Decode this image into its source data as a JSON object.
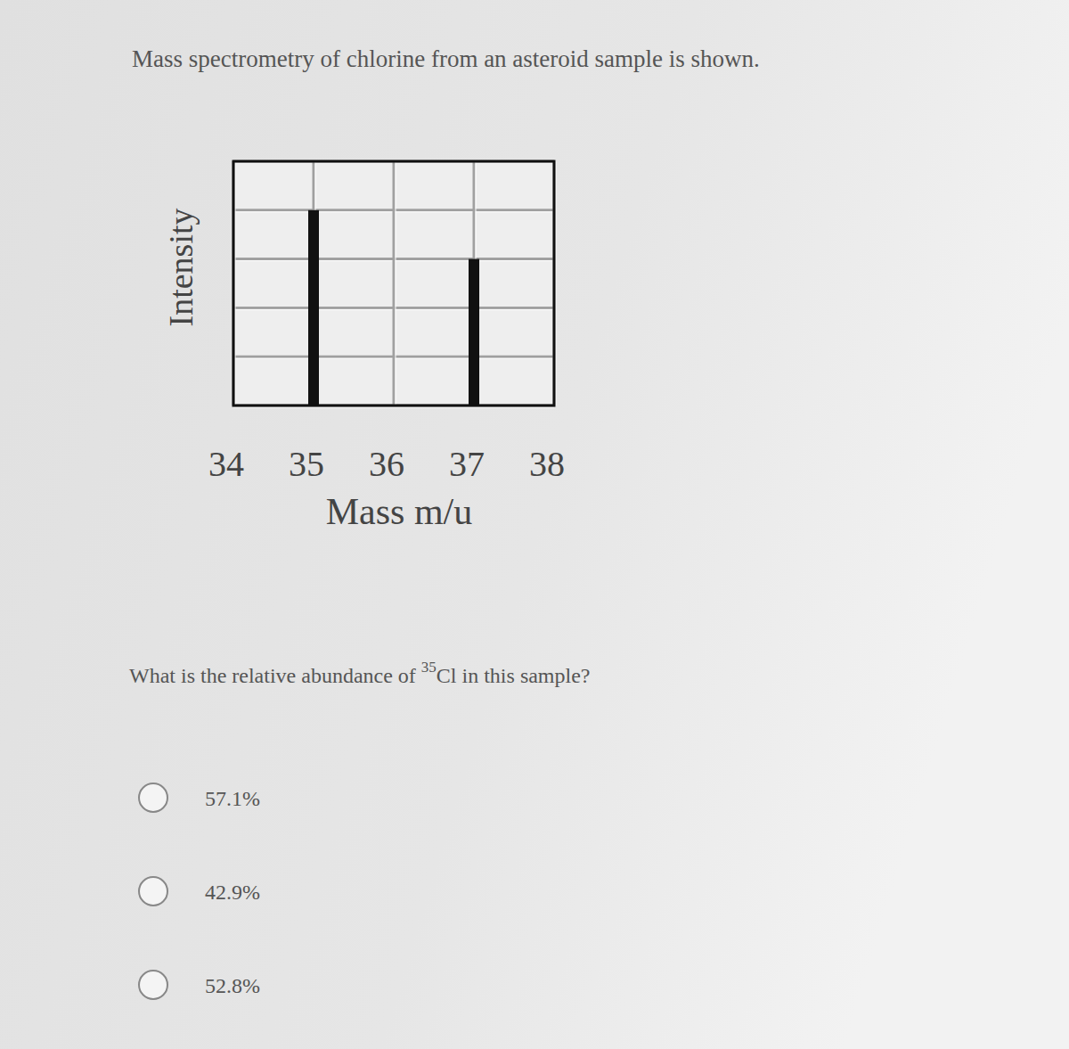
{
  "header": {
    "title": "Mass spectrometry of chlorine from an asteroid sample is shown."
  },
  "chart_data": {
    "type": "bar",
    "x": [
      35,
      37
    ],
    "values": [
      4,
      3
    ],
    "color": "#111111",
    "xlabel": "Mass m/u",
    "ylabel": "Intensity",
    "xlim": [
      34,
      38
    ],
    "xticks": [
      34,
      35,
      36,
      37,
      38
    ],
    "ylim": [
      0,
      5
    ],
    "yticks": [
      0,
      1,
      2,
      3,
      4,
      5
    ],
    "grid": true,
    "tick_labels": "x"
  },
  "question": {
    "text_before": "What is the relative abundance of",
    "superscript": "35",
    "text_after": "Cl in this sample?"
  },
  "options": [
    "57.1%",
    "42.9%",
    "52.8%"
  ]
}
